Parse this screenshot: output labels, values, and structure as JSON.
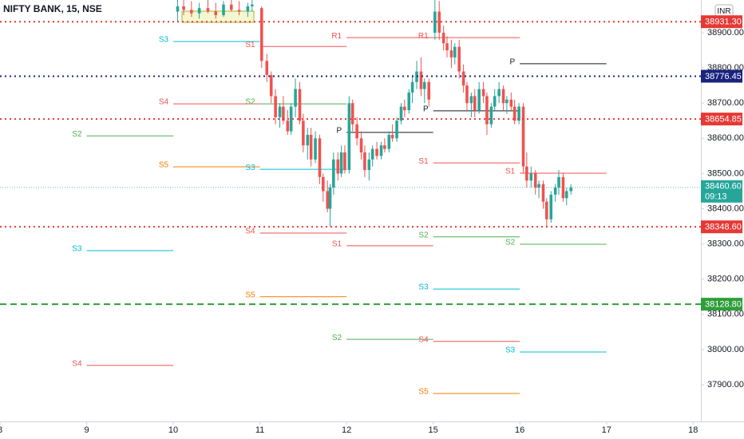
{
  "chart_data": {
    "type": "candlestick",
    "title": "NIFTY BANK, 15, NSE",
    "currency": "INR",
    "up_color": "#26a69a",
    "down_color": "#ef5350",
    "xlim": [
      0,
      8.09
    ],
    "xticks": [
      {
        "value": 0,
        "label": "8"
      },
      {
        "value": 1,
        "label": "9"
      },
      {
        "value": 2,
        "label": "10"
      },
      {
        "value": 3,
        "label": "11"
      },
      {
        "value": 4,
        "label": "12"
      },
      {
        "value": 5,
        "label": "15"
      },
      {
        "value": 6,
        "label": "16"
      },
      {
        "value": 7,
        "label": "17"
      },
      {
        "value": 8,
        "label": "18"
      }
    ],
    "ylim": [
      37798,
      38993
    ],
    "yticks": [
      {
        "value": 37900,
        "label": "37900.00"
      },
      {
        "value": 38000,
        "label": "38000.00"
      },
      {
        "value": 38100,
        "label": "38100.00"
      },
      {
        "value": 38200,
        "label": "38200.00"
      },
      {
        "value": 38300,
        "label": "38300.00"
      },
      {
        "value": 38400,
        "label": "38400.00"
      },
      {
        "value": 38500,
        "label": "38500.00"
      },
      {
        "value": 38600,
        "label": "38600.00"
      },
      {
        "value": 38700,
        "label": "38700.00"
      },
      {
        "value": 38800,
        "label": "38800.00"
      },
      {
        "value": 38900,
        "label": "38900.00"
      }
    ],
    "x": [
      2.05,
      2.12,
      2.21,
      2.3,
      2.4,
      2.49,
      2.58,
      2.67,
      2.76,
      2.86,
      2.91,
      3.02,
      3.08,
      3.13,
      3.18,
      3.23,
      3.27,
      3.32,
      3.36,
      3.41,
      3.46,
      3.5,
      3.55,
      3.59,
      3.64,
      3.69,
      3.73,
      3.78,
      3.81,
      3.85,
      3.9,
      3.94,
      3.98,
      4.03,
      4.07,
      4.12,
      4.17,
      4.21,
      4.26,
      4.3,
      4.35,
      4.4,
      4.44,
      4.49,
      4.53,
      4.58,
      4.63,
      4.67,
      4.72,
      4.76,
      4.81,
      4.86,
      4.9,
      4.95,
      5.02,
      5.07,
      5.12,
      5.16,
      5.21,
      5.25,
      5.3,
      5.35,
      5.39,
      5.44,
      5.48,
      5.53,
      5.58,
      5.62,
      5.67,
      5.71,
      5.76,
      5.81,
      5.85,
      5.9,
      5.94,
      5.99,
      6.04,
      6.08,
      6.13,
      6.18,
      6.22,
      6.27,
      6.31,
      6.36,
      6.41,
      6.45,
      6.5,
      6.54,
      6.59
    ],
    "open": [
      38960,
      38975,
      38965,
      38955,
      38970,
      38960,
      38950,
      38980,
      38965,
      38960,
      38975,
      38970,
      38820,
      38780,
      38720,
      38660,
      38690,
      38650,
      38620,
      38690,
      38740,
      38650,
      38580,
      38610,
      38540,
      38600,
      38490,
      38450,
      38400,
      38460,
      38540,
      38500,
      38560,
      38510,
      38700,
      38640,
      38600,
      38560,
      38510,
      38540,
      38570,
      38550,
      38580,
      38570,
      38610,
      38600,
      38650,
      38690,
      38680,
      38730,
      38760,
      38790,
      38740,
      38760,
      38900,
      38960,
      38900,
      38870,
      38850,
      38830,
      38860,
      38790,
      38750,
      38700,
      38720,
      38680,
      38740,
      38720,
      38640,
      38690,
      38720,
      38740,
      38700,
      38710,
      38690,
      38650,
      38690,
      38520,
      38480,
      38500,
      38460,
      38470,
      38420,
      38370,
      38440,
      38460,
      38490,
      38430,
      38450
    ],
    "high": [
      38995,
      38995,
      38990,
      38985,
      38995,
      38985,
      38990,
      38995,
      38990,
      38985,
      38995,
      38975,
      38840,
      38790,
      38740,
      38700,
      38720,
      38680,
      38700,
      38770,
      38760,
      38670,
      38630,
      38630,
      38620,
      38610,
      38500,
      38480,
      38470,
      38560,
      38560,
      38580,
      38580,
      38720,
      38710,
      38660,
      38620,
      38580,
      38560,
      38580,
      38590,
      38590,
      38600,
      38620,
      38640,
      38660,
      38700,
      38710,
      38740,
      38780,
      38820,
      38830,
      38770,
      38770,
      38995,
      38990,
      38920,
      38890,
      38880,
      38870,
      38880,
      38810,
      38760,
      38730,
      38740,
      38760,
      38760,
      38730,
      38700,
      38740,
      38760,
      38750,
      38720,
      38730,
      38710,
      38700,
      38700,
      38560,
      38520,
      38510,
      38480,
      38480,
      38430,
      38450,
      38470,
      38510,
      38500,
      38460,
      38470
    ],
    "low": [
      38930,
      38950,
      38945,
      38940,
      38955,
      38940,
      38945,
      38960,
      38950,
      38945,
      38960,
      38800,
      38760,
      38700,
      38640,
      38630,
      38640,
      38610,
      38610,
      38660,
      38640,
      38560,
      38540,
      38520,
      38530,
      38470,
      38420,
      38390,
      38350,
      38440,
      38480,
      38490,
      38500,
      38500,
      38620,
      38580,
      38540,
      38490,
      38480,
      38520,
      38540,
      38540,
      38560,
      38560,
      38590,
      38590,
      38640,
      38660,
      38670,
      38700,
      38740,
      38720,
      38700,
      38690,
      38880,
      38880,
      38850,
      38830,
      38800,
      38810,
      38770,
      38730,
      38680,
      38660,
      38660,
      38670,
      38700,
      38610,
      38630,
      38680,
      38700,
      38680,
      38670,
      38680,
      38640,
      38640,
      38500,
      38460,
      38460,
      38440,
      38430,
      38400,
      38350,
      38360,
      38420,
      38440,
      38420,
      38410,
      38440
    ],
    "close": [
      38975,
      38965,
      38955,
      38970,
      38960,
      38950,
      38980,
      38965,
      38960,
      38975,
      38980,
      38820,
      38780,
      38720,
      38660,
      38690,
      38650,
      38620,
      38690,
      38740,
      38650,
      38580,
      38610,
      38540,
      38600,
      38490,
      38450,
      38400,
      38460,
      38540,
      38500,
      38560,
      38510,
      38700,
      38640,
      38600,
      38560,
      38510,
      38540,
      38570,
      38550,
      38580,
      38570,
      38610,
      38600,
      38650,
      38690,
      38680,
      38730,
      38760,
      38790,
      38740,
      38760,
      38710,
      38960,
      38900,
      38870,
      38850,
      38830,
      38860,
      38790,
      38750,
      38700,
      38720,
      38680,
      38740,
      38720,
      38640,
      38690,
      38720,
      38740,
      38700,
      38710,
      38690,
      38650,
      38690,
      38520,
      38480,
      38500,
      38460,
      38470,
      38420,
      38370,
      38440,
      38460,
      38490,
      38430,
      38450,
      38460.6
    ],
    "pivots": [
      {
        "label": "S2",
        "value": 38607,
        "start": 1,
        "end": 2,
        "color": "#4caf50"
      },
      {
        "label": "S3",
        "value": 38281,
        "start": 1,
        "end": 2,
        "color": "#00bcd4"
      },
      {
        "label": "S4",
        "value": 37955,
        "start": 1,
        "end": 2,
        "color": "#ef5350"
      },
      {
        "label": "S3",
        "value": 38875,
        "start": 2,
        "end": 3,
        "color": "#00bcd4"
      },
      {
        "label": "S4",
        "value": 38698,
        "start": 2,
        "end": 3,
        "color": "#ef5350"
      },
      {
        "label": "S5",
        "value": 38519,
        "start": 2,
        "end": 3,
        "color": "#f57c00"
      },
      {
        "label": "S1",
        "value": 38861,
        "start": 3,
        "end": 4,
        "color": "#ef5350"
      },
      {
        "label": "S2",
        "value": 38698,
        "start": 3,
        "end": 4,
        "color": "#4caf50"
      },
      {
        "label": "S3",
        "value": 38512,
        "start": 3,
        "end": 4,
        "color": "#00bcd4"
      },
      {
        "label": "S4",
        "value": 38331,
        "start": 3,
        "end": 4,
        "color": "#ef5350"
      },
      {
        "label": "S5",
        "value": 38150,
        "start": 3,
        "end": 4,
        "color": "#f57c00"
      },
      {
        "label": "R1",
        "value": 38886,
        "start": 4,
        "end": 5,
        "color": "#ef5350"
      },
      {
        "label": "P",
        "value": 38617,
        "start": 4,
        "end": 5,
        "color": "#131722"
      },
      {
        "label": "S1",
        "value": 38295,
        "start": 4,
        "end": 5,
        "color": "#ef5350"
      },
      {
        "label": "S2",
        "value": 38029,
        "start": 4,
        "end": 5,
        "color": "#4caf50"
      },
      {
        "label": "R1",
        "value": 38886,
        "start": 5,
        "end": 6,
        "color": "#ef5350"
      },
      {
        "label": "P",
        "value": 38678,
        "start": 5,
        "end": 6,
        "color": "#131722"
      },
      {
        "label": "S1",
        "value": 38530,
        "start": 5,
        "end": 6,
        "color": "#ef5350"
      },
      {
        "label": "S2",
        "value": 38320,
        "start": 5,
        "end": 6,
        "color": "#4caf50"
      },
      {
        "label": "S3",
        "value": 38172,
        "start": 5,
        "end": 6,
        "color": "#00bcd4"
      },
      {
        "label": "S4",
        "value": 38023,
        "start": 5,
        "end": 6,
        "color": "#ef5350"
      },
      {
        "label": "S5",
        "value": 37875,
        "start": 5,
        "end": 6,
        "color": "#f57c00"
      },
      {
        "label": "P",
        "value": 38812,
        "start": 6,
        "end": 7,
        "color": "#131722"
      },
      {
        "label": "S1",
        "value": 38501,
        "start": 6,
        "end": 7,
        "color": "#ef5350"
      },
      {
        "label": "S2",
        "value": 38299,
        "start": 6,
        "end": 7,
        "color": "#4caf50"
      },
      {
        "label": "S3",
        "value": 37993,
        "start": 6,
        "end": 7,
        "color": "#00bcd4"
      }
    ],
    "price_lines": [
      {
        "value": 38931.3,
        "label": "38931.30",
        "color": "#e53935",
        "style": "dotted"
      },
      {
        "value": 38776.45,
        "label": "38776.45",
        "color": "#1a237e",
        "style": "dotted"
      },
      {
        "value": 38654.85,
        "label": "38654.85",
        "color": "#e53935",
        "style": "dotted"
      },
      {
        "value": 38348.6,
        "label": "38348.60",
        "color": "#e53935",
        "style": "dotted"
      },
      {
        "value": 38128.8,
        "label": "38128.80",
        "color": "#2e9e3a",
        "style": "dashed"
      }
    ],
    "last_price": {
      "value": 38460.6,
      "label": "38460.60",
      "countdown": "09:13",
      "color": "#26a69a"
    }
  }
}
